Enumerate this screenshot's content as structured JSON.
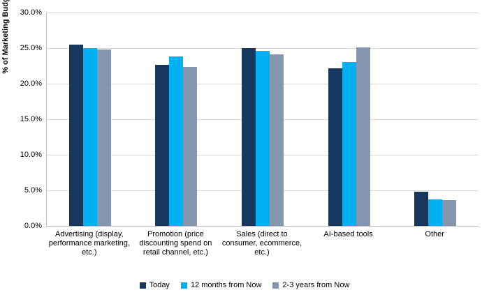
{
  "chart_data": {
    "type": "bar",
    "title": "",
    "ylabel": "% of Marketing Budget Allocated",
    "xlabel": "",
    "ylim": [
      0,
      30
    ],
    "ytick_step": 5,
    "ytick_labels": [
      "0.0%",
      "5.0%",
      "10.0%",
      "15.0%",
      "20.0%",
      "25.0%",
      "30.0%"
    ],
    "grid": true,
    "legend_position": "bottom",
    "categories": [
      "Advertising (display, performance marketing, etc.)",
      "Promotion (price discounting spend on retail channel, etc.)",
      "Sales (direct to consumer, ecommerce, etc.)",
      "AI-based tools",
      "Other"
    ],
    "series": [
      {
        "name": "Today",
        "color": "#17375E",
        "values": [
          25.5,
          22.6,
          25.0,
          22.2,
          4.8
        ]
      },
      {
        "name": "12 months from Now",
        "color": "#00B0F0",
        "values": [
          25.0,
          23.8,
          24.6,
          23.0,
          3.7
        ]
      },
      {
        "name": "2-3 years from Now",
        "color": "#8496B0",
        "values": [
          24.8,
          22.4,
          24.1,
          25.1,
          3.6
        ]
      }
    ],
    "colors": {
      "gridline": "#d9d9d9",
      "axis": "#bfbfbf",
      "background": "#ffffff"
    }
  }
}
